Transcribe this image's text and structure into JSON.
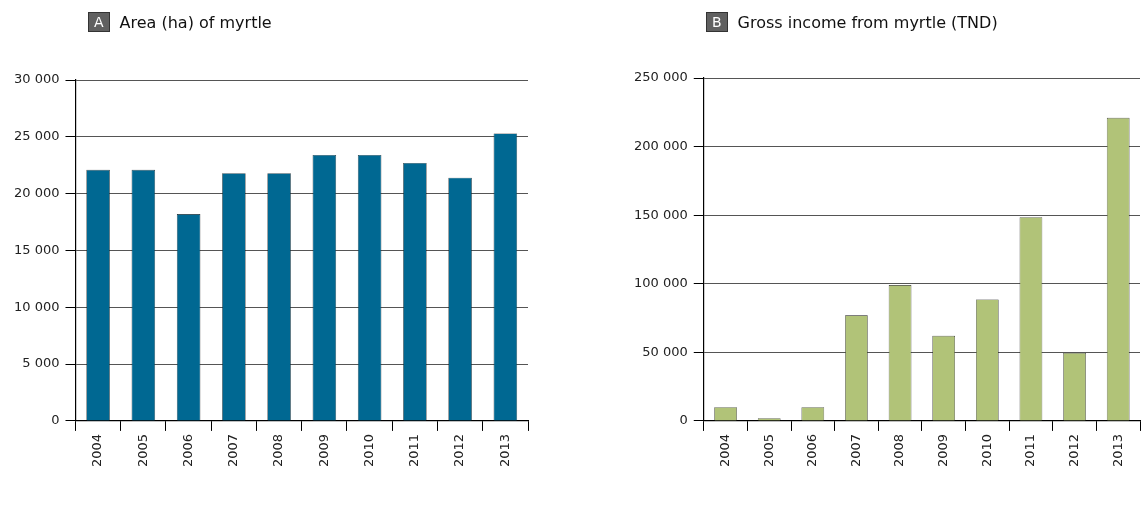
{
  "chart_data": [
    {
      "type": "bar",
      "title": "Area (ha) of myrtle",
      "annotations": [
        "A"
      ],
      "categories": [
        "2004",
        "2005",
        "2006",
        "2007",
        "2008",
        "2009",
        "2010",
        "2011",
        "2012",
        "2013"
      ],
      "values": [
        22100,
        22100,
        18200,
        21800,
        21800,
        23400,
        23400,
        22700,
        21400,
        25300
      ],
      "color": "#006892",
      "ylim": [
        0,
        30000
      ],
      "yticks": [
        {
          "value": 0,
          "label": "0"
        },
        {
          "value": 5000,
          "label": "5 000"
        },
        {
          "value": 10000,
          "label": "10 000"
        },
        {
          "value": 15000,
          "label": "15 000"
        },
        {
          "value": 20000,
          "label": "20 000"
        },
        {
          "value": 25000,
          "label": "25 000"
        },
        {
          "value": 30000,
          "label": "30 000"
        }
      ],
      "grid": "y"
    },
    {
      "type": "bar",
      "title": "Gross income from myrtle (TND)",
      "annotations": [
        "B"
      ],
      "categories": [
        "2004",
        "2005",
        "2006",
        "2007",
        "2008",
        "2009",
        "2010",
        "2011",
        "2012",
        "2013"
      ],
      "values": [
        10000,
        2000,
        10000,
        77000,
        99000,
        62000,
        88500,
        148500,
        49500,
        221000
      ],
      "color": "#b1c378",
      "ylim": [
        0,
        250000
      ],
      "yticks": [
        {
          "value": 0,
          "label": "0"
        },
        {
          "value": 50000,
          "label": "50 000"
        },
        {
          "value": 100000,
          "label": "100 000"
        },
        {
          "value": 150000,
          "label": "150 000"
        },
        {
          "value": 200000,
          "label": "200 000"
        },
        {
          "value": 250000,
          "label": "250 000"
        }
      ],
      "grid": "y"
    }
  ]
}
